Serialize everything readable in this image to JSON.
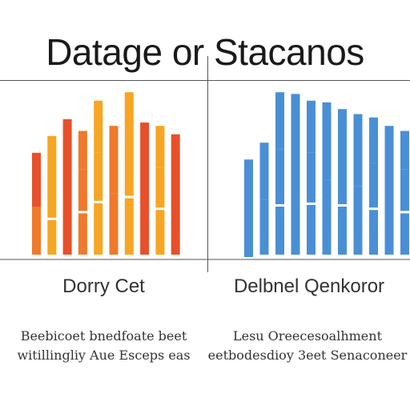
{
  "title": "Datage or Stacanos",
  "chart_data": [
    {
      "type": "bar",
      "stacked": true,
      "title": "Dorry Cet",
      "caption_lines": [
        "Beebicoet bnedfoate beet",
        "witillingliy Aue Esceps eas"
      ],
      "series_colors": [
        "#f6a623",
        "#f0792b",
        "#e8502a"
      ],
      "ylim": [
        0,
        100
      ],
      "grid": false,
      "bars": [
        {
          "total": 62,
          "segments": [
            30,
            32
          ],
          "colors": [
            "#f0792b",
            "#e8502a"
          ]
        },
        {
          "total": 72,
          "segments": [
            22,
            28,
            22
          ],
          "colors": [
            "#f6a623",
            "#f6a623",
            "#f6a623"
          ]
        },
        {
          "total": 82,
          "segments": [
            40,
            42
          ],
          "colors": [
            "#e8502a",
            "#e8502a"
          ]
        },
        {
          "total": 75,
          "segments": [
            26,
            26,
            23
          ],
          "colors": [
            "#f0792b",
            "#f0792b",
            "#f0792b"
          ]
        },
        {
          "total": 93,
          "segments": [
            32,
            30,
            31
          ],
          "colors": [
            "#f6a623",
            "#f6a623",
            "#f6a623"
          ]
        },
        {
          "total": 78,
          "segments": [
            38,
            40
          ],
          "colors": [
            "#f0792b",
            "#f0792b"
          ]
        },
        {
          "total": 98,
          "segments": [
            35,
            30,
            33
          ],
          "colors": [
            "#f6a623",
            "#f6a623",
            "#f6a623"
          ]
        },
        {
          "total": 80,
          "segments": [
            40,
            40
          ],
          "colors": [
            "#e8502a",
            "#e8502a"
          ]
        },
        {
          "total": 78,
          "segments": [
            28,
            25,
            25
          ],
          "colors": [
            "#f6a623",
            "#f6a623",
            "#f6a623"
          ]
        },
        {
          "total": 73,
          "segments": [
            30,
            43
          ],
          "colors": [
            "#e8502a",
            "#e8502a"
          ]
        }
      ]
    },
    {
      "type": "bar",
      "stacked": true,
      "title": "Delbnel Qenkoror",
      "caption_lines": [
        "Lesu Oreecesoalhment",
        "eetbodesdioy 3eet Senaconeer"
      ],
      "series_colors": [
        "#4a8fd6",
        "#6aa9e4"
      ],
      "ylim": [
        0,
        100
      ],
      "grid": false,
      "bars": [
        {
          "total": 58,
          "segments": [
            58
          ],
          "colors": [
            "#4a8fd6"
          ]
        },
        {
          "total": 68,
          "segments": [
            34,
            34
          ],
          "colors": [
            "#4a8fd6",
            "#4a8fd6"
          ]
        },
        {
          "total": 98,
          "segments": [
            30,
            34,
            34
          ],
          "colors": [
            "#4a8fd6",
            "#4a8fd6",
            "#4a8fd6"
          ]
        },
        {
          "total": 97,
          "segments": [
            45,
            52
          ],
          "colors": [
            "#4a8fd6",
            "#4a8fd6"
          ]
        },
        {
          "total": 93,
          "segments": [
            31,
            31,
            31
          ],
          "colors": [
            "#4a8fd6",
            "#4a8fd6",
            "#4a8fd6"
          ]
        },
        {
          "total": 92,
          "segments": [
            46,
            46
          ],
          "colors": [
            "#4a8fd6",
            "#4a8fd6"
          ]
        },
        {
          "total": 88,
          "segments": [
            30,
            30,
            28
          ],
          "colors": [
            "#4a8fd6",
            "#4a8fd6",
            "#4a8fd6"
          ]
        },
        {
          "total": 85,
          "segments": [
            42,
            43
          ],
          "colors": [
            "#4a8fd6",
            "#4a8fd6"
          ]
        },
        {
          "total": 83,
          "segments": [
            28,
            28,
            27
          ],
          "colors": [
            "#4a8fd6",
            "#4a8fd6",
            "#4a8fd6"
          ]
        },
        {
          "total": 78,
          "segments": [
            40,
            38
          ],
          "colors": [
            "#4a8fd6",
            "#4a8fd6"
          ]
        },
        {
          "total": 75,
          "segments": [
            26,
            26,
            23
          ],
          "colors": [
            "#4a8fd6",
            "#4a8fd6",
            "#4a8fd6"
          ]
        },
        {
          "total": 82,
          "segments": [
            41,
            41
          ],
          "colors": [
            "#4a8fd6",
            "#4a8fd6"
          ]
        },
        {
          "total": 87,
          "segments": [
            44,
            43
          ],
          "colors": [
            "#4a8fd6",
            "#4a8fd6"
          ]
        }
      ]
    }
  ]
}
